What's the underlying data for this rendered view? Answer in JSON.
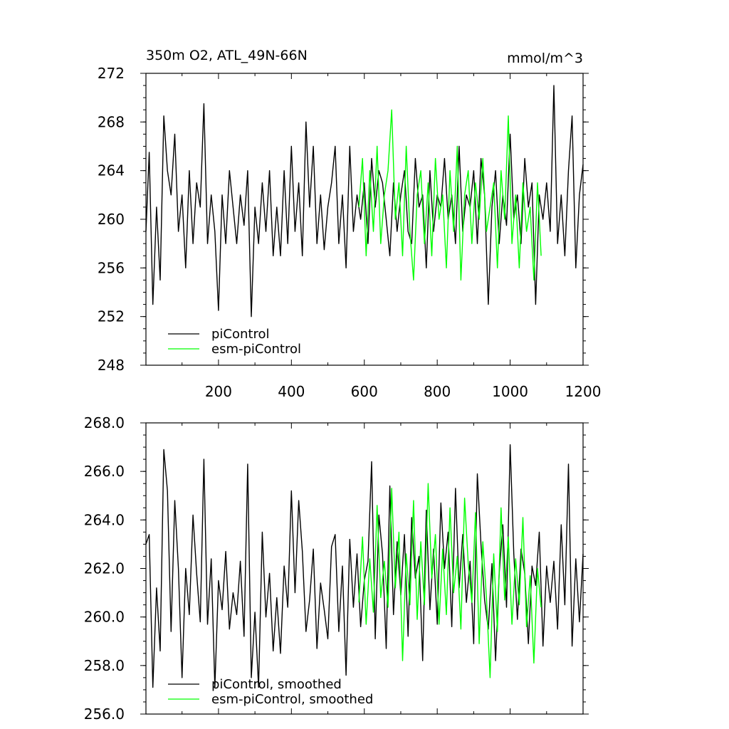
{
  "chart_data": [
    {
      "type": "line",
      "title": "350m O2, ATL_49N-66N",
      "units": "mmol/m^3",
      "xlabel": "",
      "ylabel": "",
      "xlim": [
        1,
        1200
      ],
      "ylim": [
        248,
        272
      ],
      "x_ticks": [
        200,
        400,
        600,
        800,
        1000,
        1200
      ],
      "y_ticks": [
        248,
        252,
        256,
        260,
        264,
        268,
        272
      ],
      "y_tick_labels": [
        "248",
        "252",
        "256",
        "260",
        "264",
        "268",
        "272"
      ],
      "legend_position": "bottom-left",
      "series": [
        {
          "name": "piControl",
          "color": "#000000",
          "x": [
            1,
            10,
            20,
            30,
            40,
            50,
            60,
            70,
            80,
            90,
            100,
            110,
            120,
            130,
            140,
            150,
            160,
            170,
            180,
            190,
            200,
            210,
            220,
            230,
            240,
            250,
            260,
            270,
            280,
            290,
            300,
            310,
            320,
            330,
            340,
            350,
            360,
            370,
            380,
            390,
            400,
            410,
            420,
            430,
            440,
            450,
            460,
            470,
            480,
            490,
            500,
            510,
            520,
            530,
            540,
            550,
            560,
            570,
            580,
            590,
            600,
            610,
            620,
            630,
            640,
            650,
            660,
            670,
            680,
            690,
            700,
            710,
            720,
            730,
            740,
            750,
            760,
            770,
            780,
            790,
            800,
            810,
            820,
            830,
            840,
            850,
            860,
            870,
            880,
            890,
            900,
            910,
            920,
            930,
            940,
            950,
            960,
            970,
            980,
            990,
            1000,
            1010,
            1020,
            1030,
            1040,
            1050,
            1060,
            1070,
            1080,
            1090,
            1100,
            1110,
            1120,
            1130,
            1140,
            1150,
            1160,
            1170,
            1180,
            1190,
            1200
          ],
          "values": [
            259,
            265.5,
            253,
            261,
            255,
            268.5,
            264,
            262,
            267,
            259,
            262,
            256,
            264,
            258,
            263,
            261,
            269.5,
            258,
            262,
            259,
            252.5,
            262,
            258,
            264,
            261,
            258,
            262,
            259.5,
            264,
            252,
            261,
            258,
            263,
            259,
            264,
            257,
            261,
            257,
            264,
            258,
            266,
            259,
            263,
            257,
            268,
            261,
            266,
            258,
            262,
            257.5,
            261,
            263,
            266,
            258,
            262,
            256,
            266,
            259,
            262,
            260,
            263,
            258,
            265,
            261,
            264,
            263,
            260,
            257,
            263,
            259,
            262,
            264,
            259,
            258,
            265,
            261,
            262,
            256,
            264,
            259,
            262,
            261,
            265,
            260,
            262,
            258,
            266,
            259,
            262,
            261,
            264,
            258,
            265,
            262,
            253,
            261,
            264,
            258,
            262,
            259.5,
            267,
            260,
            262,
            258,
            265,
            261,
            263,
            253,
            262,
            260,
            263,
            259,
            271,
            258,
            262,
            257,
            264,
            268.5,
            256,
            262,
            264.5
          ]
        },
        {
          "name": "esm-piControl",
          "color": "#00ff00",
          "x": [
            585,
            595,
            605,
            615,
            625,
            635,
            645,
            655,
            665,
            675,
            685,
            695,
            705,
            715,
            725,
            735,
            745,
            755,
            765,
            775,
            785,
            795,
            805,
            815,
            825,
            835,
            845,
            855,
            865,
            875,
            885,
            895,
            905,
            915,
            925,
            935,
            945,
            955,
            965,
            975,
            985,
            995,
            1005,
            1015,
            1025,
            1035,
            1045,
            1055,
            1065,
            1075,
            1085
          ],
          "values": [
            261,
            265,
            257,
            264,
            259,
            266,
            258,
            262,
            264,
            269,
            260,
            263,
            257,
            266,
            259,
            255,
            262,
            264,
            258,
            263,
            257,
            265,
            260,
            262,
            256,
            264,
            259,
            266,
            255,
            262,
            264,
            258,
            263,
            260,
            265,
            259,
            261,
            263,
            256,
            264,
            260,
            268.5,
            258,
            262,
            256,
            263,
            259,
            261,
            255,
            263,
            257
          ]
        }
      ]
    },
    {
      "type": "line",
      "title": "",
      "xlabel": "",
      "ylabel": "",
      "xlim": [
        1,
        1200
      ],
      "ylim": [
        256,
        268
      ],
      "x_ticks": [
        200,
        400,
        600,
        800,
        1000,
        1200
      ],
      "y_ticks": [
        256,
        258,
        260,
        262,
        264,
        266,
        268
      ],
      "y_tick_labels": [
        "256.0",
        "258.0",
        "260.0",
        "262.0",
        "264.0",
        "266.0",
        "268.0"
      ],
      "legend_position": "bottom-left",
      "series": [
        {
          "name": "piControl, smoothed",
          "color": "#000000",
          "x": [
            1,
            10,
            20,
            30,
            40,
            50,
            60,
            70,
            80,
            90,
            100,
            110,
            120,
            130,
            140,
            150,
            160,
            170,
            180,
            190,
            200,
            210,
            220,
            230,
            240,
            250,
            260,
            270,
            280,
            290,
            300,
            310,
            320,
            330,
            340,
            350,
            360,
            370,
            380,
            390,
            400,
            410,
            420,
            430,
            440,
            450,
            460,
            470,
            480,
            490,
            500,
            510,
            520,
            530,
            540,
            550,
            560,
            570,
            580,
            590,
            600,
            610,
            620,
            630,
            640,
            650,
            660,
            670,
            680,
            690,
            700,
            710,
            720,
            730,
            740,
            750,
            760,
            770,
            780,
            790,
            800,
            810,
            820,
            830,
            840,
            850,
            860,
            870,
            880,
            890,
            900,
            910,
            920,
            930,
            940,
            950,
            960,
            970,
            980,
            990,
            1000,
            1010,
            1020,
            1030,
            1040,
            1050,
            1060,
            1070,
            1080,
            1090,
            1100,
            1110,
            1120,
            1130,
            1140,
            1150,
            1160,
            1170,
            1180,
            1190,
            1200
          ],
          "values": [
            263,
            263.4,
            257.1,
            261.2,
            258.6,
            266.9,
            265.2,
            259.4,
            264.8,
            262,
            257.5,
            262,
            260.1,
            264.2,
            261.8,
            259.8,
            266.5,
            259.7,
            262.4,
            257.1,
            261.5,
            260.3,
            262.7,
            259.5,
            261,
            260.1,
            262.3,
            259.2,
            266.3,
            257.5,
            260.2,
            257.1,
            263.5,
            260,
            261.8,
            258.6,
            260.8,
            258.5,
            262.1,
            260.4,
            265.2,
            261,
            264.8,
            262.7,
            259.4,
            260.7,
            262.8,
            258.7,
            261.4,
            260.3,
            259.1,
            262.9,
            263.4,
            259.4,
            262.1,
            257.6,
            263.2,
            260.4,
            262.6,
            259.6,
            261.5,
            262.3,
            266.4,
            259.1,
            264.2,
            262.6,
            258.7,
            265.4,
            260.1,
            263.1,
            260.9,
            263.4,
            259.2,
            264.1,
            261.6,
            262.5,
            258.2,
            264.4,
            260.3,
            262.8,
            259.7,
            264.7,
            262,
            263.5,
            259.6,
            265.3,
            261.2,
            263.4,
            260.6,
            262.3,
            258.9,
            265.9,
            263,
            260.7,
            259.5,
            262.2,
            258.2,
            261.8,
            263.8,
            260.4,
            267.1,
            262.6,
            259.9,
            262.8,
            261.8,
            258.9,
            262.1,
            261.3,
            263.5,
            258.8,
            262.1,
            260.6,
            262.3,
            259.5,
            263.8,
            260.5,
            266.3,
            258.8,
            262.4,
            259.8,
            262.6
          ]
        },
        {
          "name": "esm-piControl, smoothed",
          "color": "#00ff00",
          "x": [
            585,
            595,
            605,
            615,
            625,
            635,
            645,
            655,
            665,
            675,
            685,
            695,
            705,
            715,
            725,
            735,
            745,
            755,
            765,
            775,
            785,
            795,
            805,
            815,
            825,
            835,
            845,
            855,
            865,
            875,
            885,
            895,
            905,
            915,
            925,
            935,
            945,
            955,
            965,
            975,
            985,
            995,
            1005,
            1015,
            1025,
            1035,
            1045,
            1055,
            1065,
            1075,
            1085
          ],
          "values": [
            260.6,
            263.3,
            259.7,
            262.4,
            260.2,
            264.6,
            260.8,
            262.3,
            260.4,
            265.3,
            261.2,
            263.5,
            258.2,
            262.6,
            260.5,
            264.8,
            259.9,
            263.1,
            260.5,
            265.5,
            261.6,
            263.4,
            259.7,
            262.8,
            260.1,
            264.5,
            261,
            262.5,
            259.5,
            264.9,
            262.2,
            260.6,
            264.3,
            258.9,
            263.1,
            260.8,
            257.5,
            262.6,
            259.4,
            264.5,
            260.7,
            263.3,
            259.7,
            262.4,
            260.5,
            264.1,
            259.6,
            261.7,
            258.1,
            262,
            260.4
          ]
        }
      ]
    }
  ]
}
